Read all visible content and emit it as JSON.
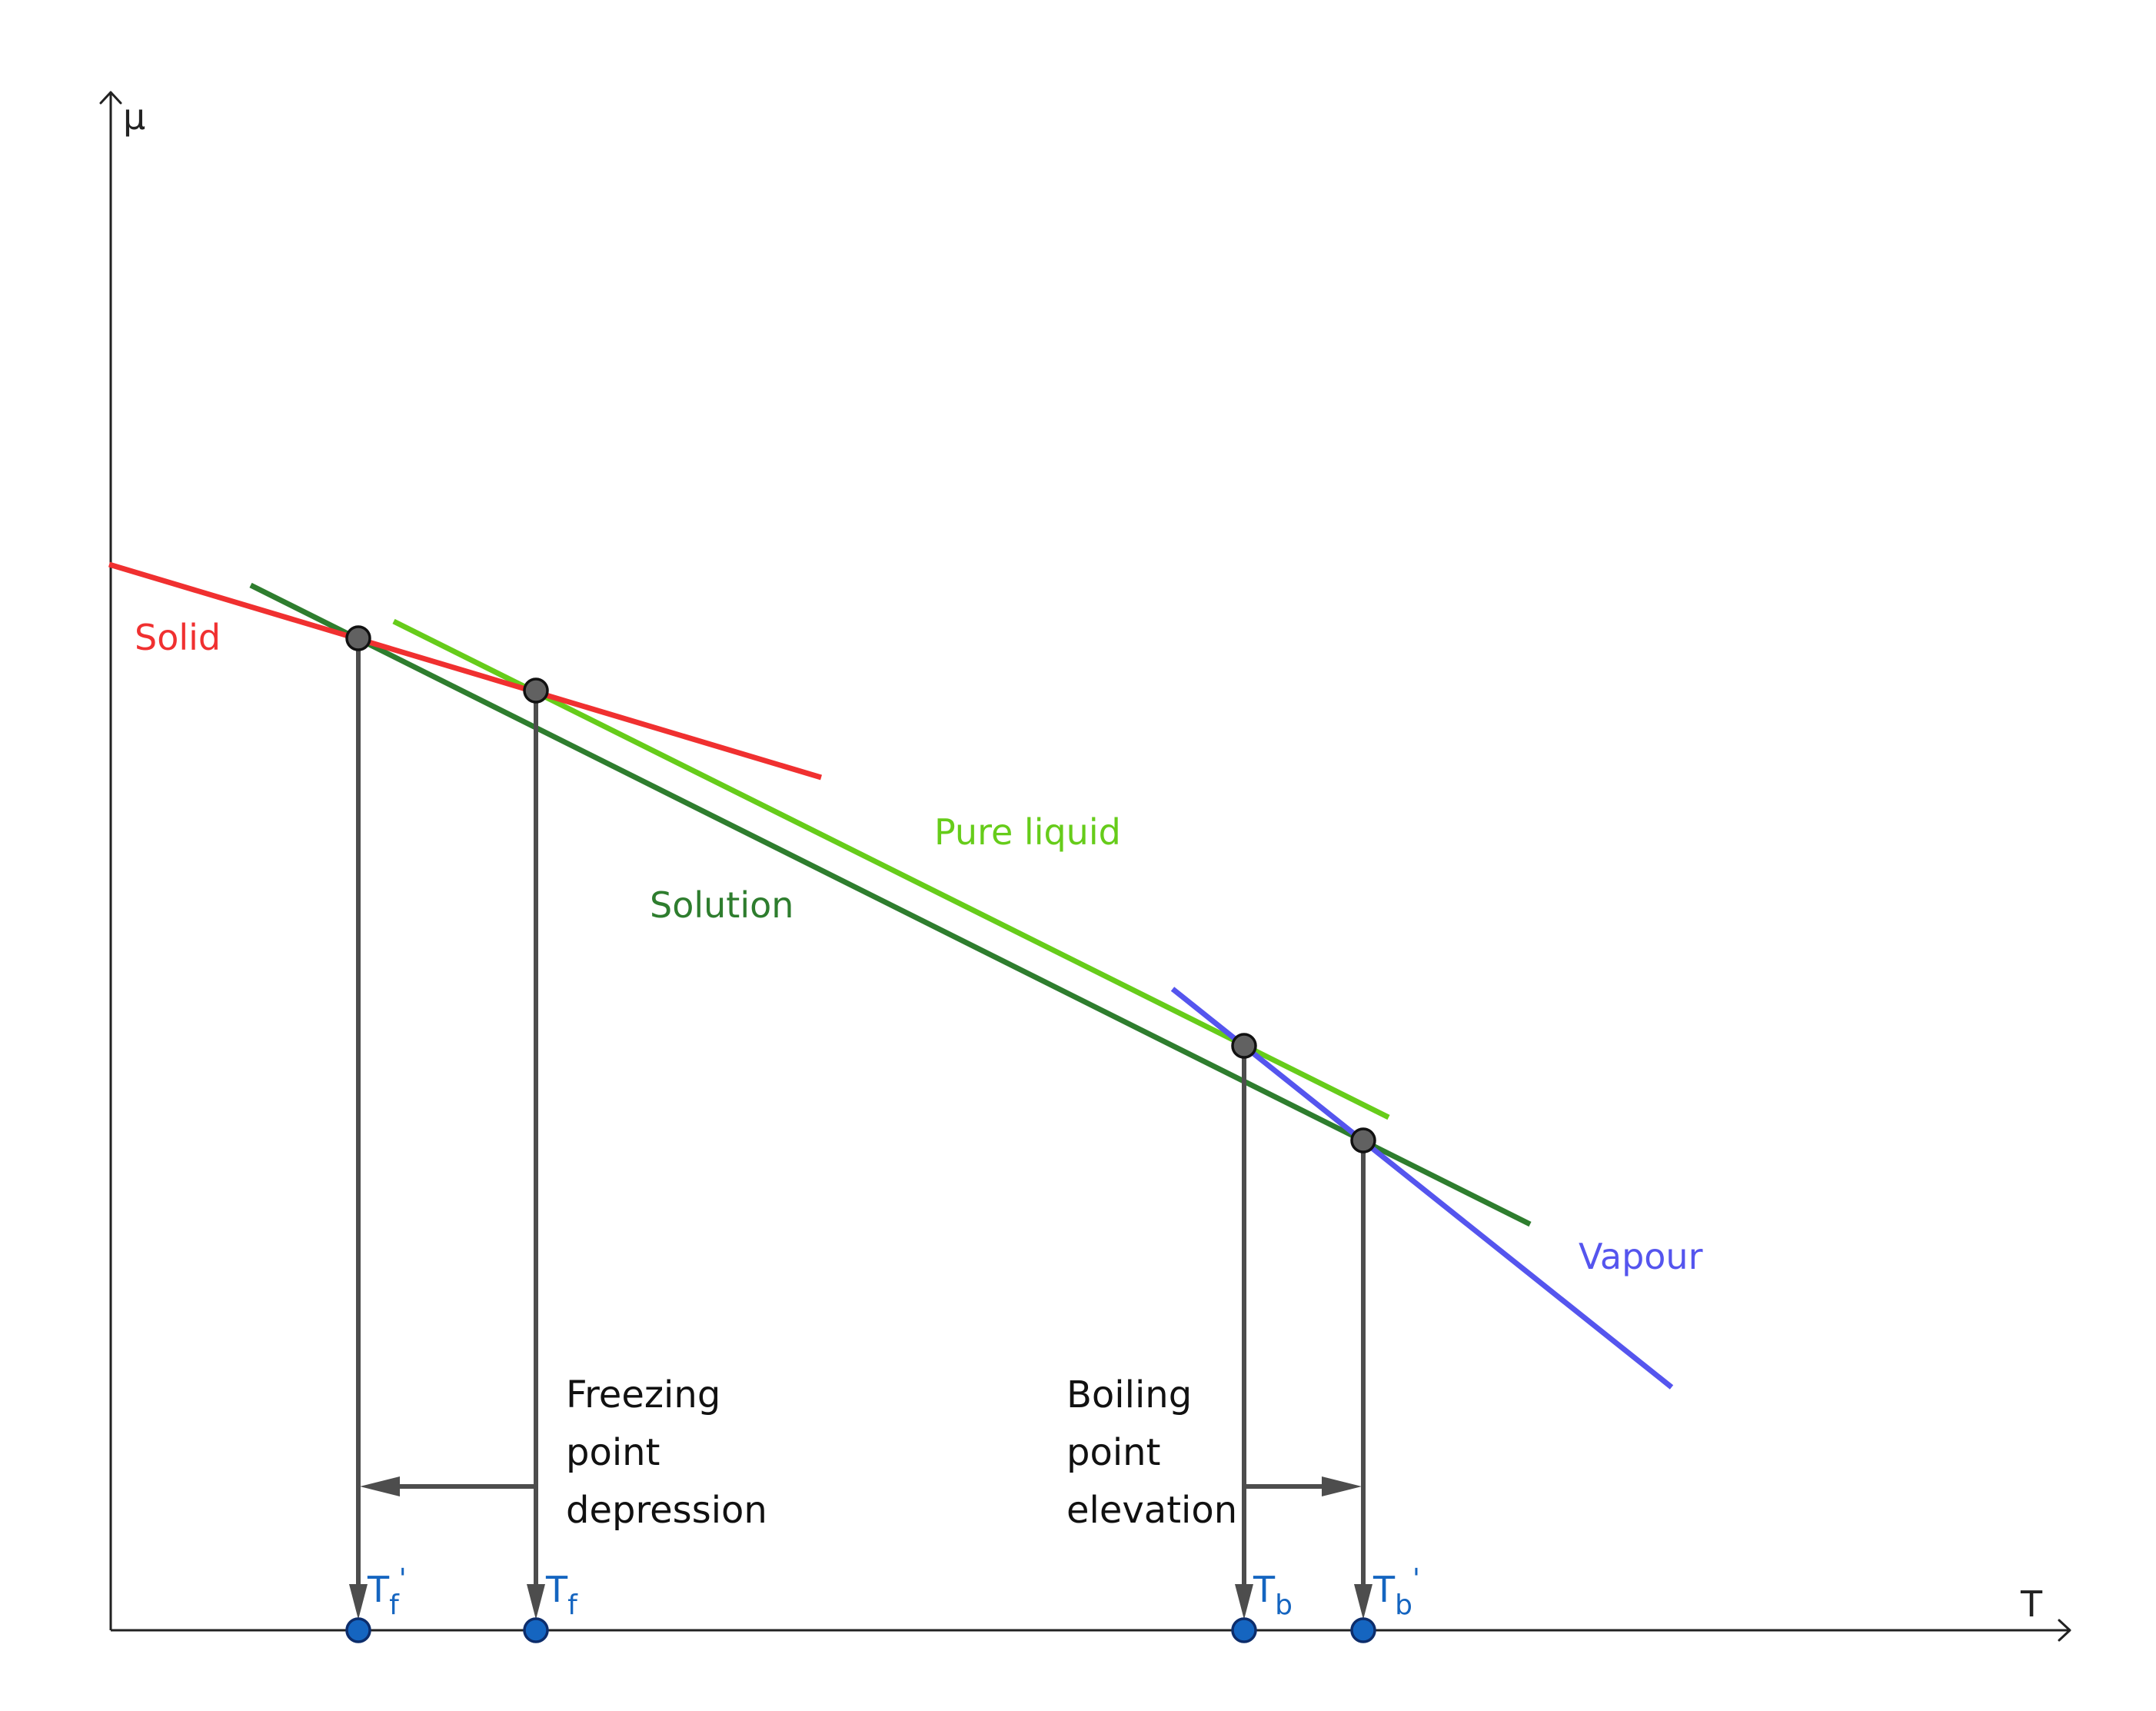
{
  "axes": {
    "y_label": "μ",
    "x_label": "T"
  },
  "curves": {
    "solid": {
      "label": "Solid",
      "color": "#f03030"
    },
    "pure_liquid": {
      "label": "Pure liquid",
      "color": "#66cc1a"
    },
    "solution": {
      "label": "Solution",
      "color": "#2e7d2e"
    },
    "vapour": {
      "label": "Vapour",
      "color": "#5555ee"
    }
  },
  "temperatures": {
    "tf_prime": {
      "base": "T",
      "sub": "f",
      "sup": "'"
    },
    "tf": {
      "base": "T",
      "sub": "f",
      "sup": ""
    },
    "tb": {
      "base": "T",
      "sub": "b",
      "sup": ""
    },
    "tb_prime": {
      "base": "T",
      "sub": "b",
      "sup": "'"
    }
  },
  "annotations": {
    "freezing": [
      "Freezing",
      "point",
      "depression"
    ],
    "boiling": [
      "Boiling",
      "point",
      "elevation"
    ]
  },
  "colors": {
    "axis": "#222222",
    "drop_lines": "#4d4d4d",
    "intersection_points": "#616161",
    "temperature_points": "#1565c0"
  }
}
